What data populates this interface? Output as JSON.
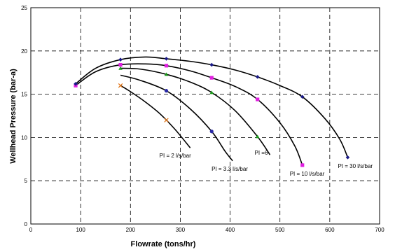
{
  "chart_data": {
    "type": "line",
    "title": "",
    "xlabel": "Flowrate (tons/hr)",
    "ylabel": "Wellhead Pressure  (bar-a)",
    "xlim": [
      0,
      700
    ],
    "ylim": [
      0,
      25
    ],
    "x_ticks": [
      "0",
      "100",
      "200",
      "300",
      "400",
      "500",
      "600",
      "700"
    ],
    "y_ticks": [
      "0",
      "5",
      "10",
      "15",
      "20",
      "25"
    ],
    "grid": true,
    "grid_style": "dashed",
    "legend": "none",
    "series": [
      {
        "name": "PI = 2 l/s/bar",
        "color": "#e07010",
        "marker": "x",
        "points": [
          [
            180,
            16.0
          ],
          [
            272,
            12.0
          ]
        ],
        "curve": [
          [
            180,
            16.0
          ],
          [
            200,
            15.3
          ],
          [
            230,
            14.1
          ],
          [
            260,
            12.7
          ],
          [
            290,
            10.9
          ],
          [
            320,
            8.8
          ]
        ]
      },
      {
        "name": "PI = 3.3 l/s/bar",
        "color": "#2a2aa8",
        "marker": "circle",
        "points": [
          [
            272,
            15.4
          ],
          [
            363,
            10.7
          ]
        ],
        "curve": [
          [
            180,
            17.2
          ],
          [
            220,
            16.6
          ],
          [
            272,
            15.4
          ],
          [
            320,
            13.3
          ],
          [
            363,
            10.7
          ],
          [
            390,
            8.4
          ],
          [
            405,
            7.3
          ]
        ]
      },
      {
        "name": "PI =6",
        "color": "#1a9a1a",
        "marker": "triangle",
        "points": [
          [
            180,
            18.0
          ],
          [
            272,
            17.3
          ],
          [
            363,
            15.2
          ],
          [
            455,
            10.1
          ]
        ],
        "curve": [
          [
            180,
            18.0
          ],
          [
            220,
            17.9
          ],
          [
            272,
            17.3
          ],
          [
            320,
            16.4
          ],
          [
            363,
            15.2
          ],
          [
            410,
            13.1
          ],
          [
            455,
            10.1
          ],
          [
            480,
            8.0
          ]
        ]
      },
      {
        "name": "PI = 10 l/s/bar",
        "color": "#e020e0",
        "marker": "square",
        "points": [
          [
            90,
            16.0
          ],
          [
            180,
            18.4
          ],
          [
            272,
            18.3
          ],
          [
            363,
            16.9
          ],
          [
            455,
            14.4
          ],
          [
            545,
            6.8
          ]
        ],
        "curve": [
          [
            90,
            16.0
          ],
          [
            130,
            17.6
          ],
          [
            180,
            18.4
          ],
          [
            230,
            18.5
          ],
          [
            272,
            18.3
          ],
          [
            320,
            17.7
          ],
          [
            363,
            16.9
          ],
          [
            410,
            15.9
          ],
          [
            455,
            14.4
          ],
          [
            500,
            11.7
          ],
          [
            530,
            9.0
          ],
          [
            545,
            6.8
          ]
        ]
      },
      {
        "name": "PI = 30 l/s/bar",
        "color": "#1a1a88",
        "marker": "diamond",
        "points": [
          [
            90,
            16.2
          ],
          [
            180,
            19.0
          ],
          [
            272,
            19.1
          ],
          [
            363,
            18.4
          ],
          [
            455,
            17.0
          ],
          [
            545,
            14.7
          ],
          [
            636,
            7.7
          ]
        ],
        "curve": [
          [
            90,
            16.2
          ],
          [
            130,
            18.0
          ],
          [
            180,
            19.0
          ],
          [
            230,
            19.3
          ],
          [
            272,
            19.1
          ],
          [
            320,
            18.8
          ],
          [
            363,
            18.4
          ],
          [
            410,
            17.8
          ],
          [
            455,
            17.0
          ],
          [
            500,
            16.0
          ],
          [
            545,
            14.7
          ],
          [
            590,
            12.2
          ],
          [
            620,
            9.8
          ],
          [
            636,
            7.7
          ]
        ]
      }
    ]
  }
}
